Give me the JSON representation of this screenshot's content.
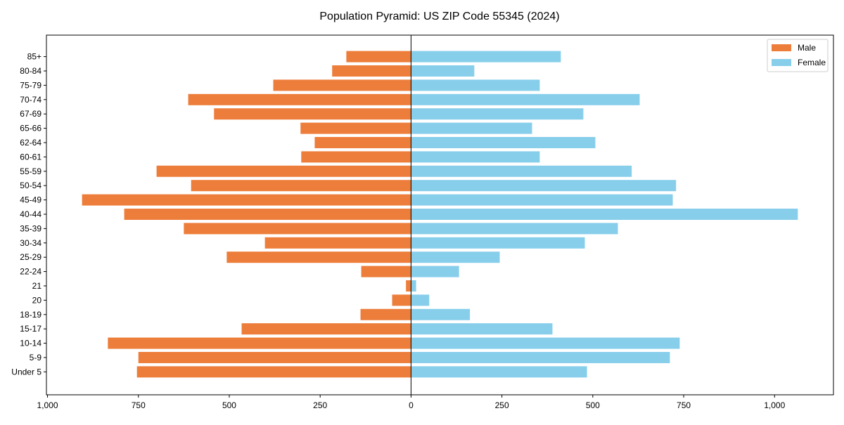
{
  "chart_data": {
    "type": "bar",
    "orientation": "horizontal",
    "title": "Population Pyramid: US ZIP Code 55345 (2024)",
    "xlabel": "",
    "ylabel": "",
    "xlim": [
      -1003,
      1162
    ],
    "xticks": [
      -1000,
      -750,
      -500,
      -250,
      0,
      250,
      500,
      750,
      1000
    ],
    "xtick_labels": [
      "1,000",
      "750",
      "500",
      "250",
      "0",
      "250",
      "500",
      "750",
      "1,000"
    ],
    "grid": false,
    "legend_position": "top-right",
    "categories": [
      "Under 5",
      "5-9",
      "10-14",
      "15-17",
      "18-19",
      "20",
      "21",
      "22-24",
      "25-29",
      "30-34",
      "35-39",
      "40-44",
      "45-49",
      "50-54",
      "55-59",
      "60-61",
      "62-64",
      "65-66",
      "67-69",
      "70-74",
      "75-79",
      "80-84",
      "85+"
    ],
    "series": [
      {
        "name": "Male",
        "color": "#ED7D3A",
        "values": [
          754,
          750,
          834,
          466,
          139,
          52,
          14,
          137,
          507,
          402,
          625,
          789,
          905,
          605,
          700,
          302,
          265,
          304,
          542,
          613,
          379,
          217,
          178
        ]
      },
      {
        "name": "Female",
        "color": "#87CEEB",
        "values": [
          484,
          712,
          739,
          389,
          162,
          50,
          14,
          132,
          244,
          478,
          569,
          1064,
          720,
          729,
          607,
          354,
          507,
          333,
          474,
          629,
          354,
          174,
          412
        ]
      }
    ]
  }
}
